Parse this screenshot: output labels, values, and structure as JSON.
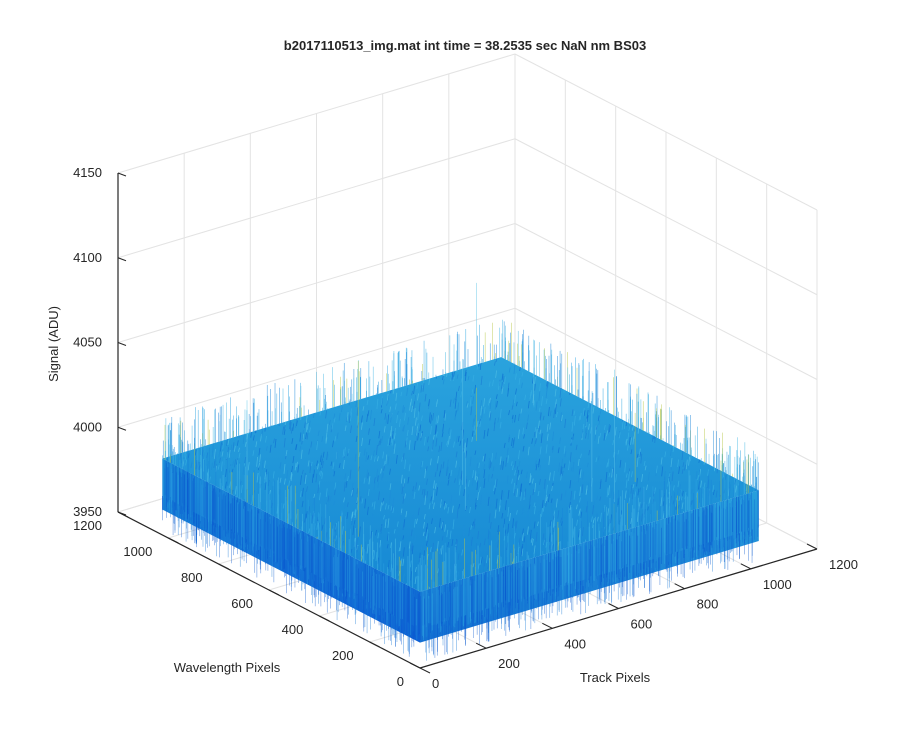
{
  "chart_data": {
    "type": "surface",
    "title": "b2017110513_img.mat int time = 38.2535 sec  NaN nm BS03",
    "xlabel": "Track Pixels",
    "ylabel": "Wavelength Pixels",
    "zlabel": "Signal (ADU)",
    "xlim": [
      0,
      1200
    ],
    "ylim": [
      0,
      1200
    ],
    "zlim": [
      3950,
      4150
    ],
    "x_ticks": [
      0,
      200,
      400,
      600,
      800,
      1000,
      1200
    ],
    "y_ticks": [
      0,
      200,
      400,
      600,
      800,
      1000,
      1200
    ],
    "z_ticks": [
      3950,
      4000,
      4050,
      4100,
      4150
    ],
    "x_tick_labels": [
      "0",
      "200",
      "400",
      "600",
      "800",
      "1000",
      "1200"
    ],
    "y_tick_labels": [
      "0",
      "200",
      "400",
      "600",
      "800",
      "1000",
      "1200"
    ],
    "z_tick_labels": [
      "3950",
      "4000",
      "4050",
      "4100",
      "4150"
    ],
    "surface": {
      "x_range": [
        0,
        1024
      ],
      "y_range": [
        0,
        1024
      ],
      "mean_signal": 3995,
      "noise_min": 3965,
      "noise_max": 4020,
      "spike_max": 4110
    },
    "grid": true,
    "colormap": "parula",
    "colors": {
      "surface_low": "#0b5fd6",
      "surface_mid": "#1e90d6",
      "surface_high": "#3fb0e0",
      "spike": "#b8c84a"
    }
  }
}
